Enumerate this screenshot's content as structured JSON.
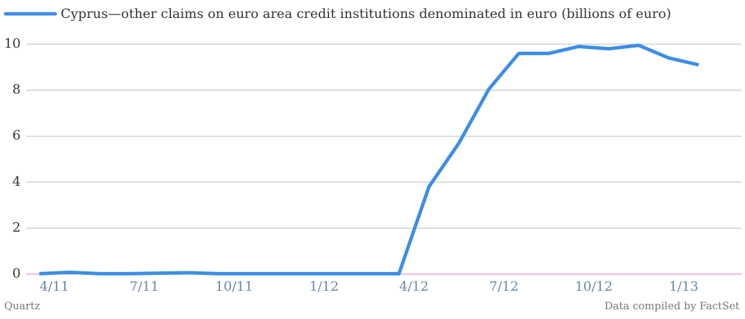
{
  "chart_data": {
    "type": "line",
    "categories": [
      "4/11",
      null,
      null,
      "7/11",
      null,
      null,
      "10/11",
      null,
      null,
      "1/12",
      null,
      null,
      "4/12",
      null,
      null,
      "7/12",
      null,
      null,
      "10/12",
      null,
      null,
      "1/13",
      null
    ],
    "series": [
      {
        "name": "Cyprus—other claims on euro area credit institutions denominated in euro (billions of euro)",
        "color": "#3b8ee6",
        "values": [
          0.02,
          0.08,
          0.02,
          0.02,
          0.04,
          0.06,
          0.02,
          0.02,
          0.02,
          0.02,
          0.02,
          0.02,
          0.02,
          3.8,
          5.7,
          8.05,
          9.6,
          9.6,
          9.9,
          9.8,
          9.95,
          9.4,
          9.1
        ]
      }
    ],
    "ylim": [
      0,
      10
    ],
    "yticks": [
      0,
      2,
      4,
      6,
      8,
      10
    ],
    "grid": true,
    "source": "Data compiled by FactSet",
    "credit": "Quartz"
  }
}
